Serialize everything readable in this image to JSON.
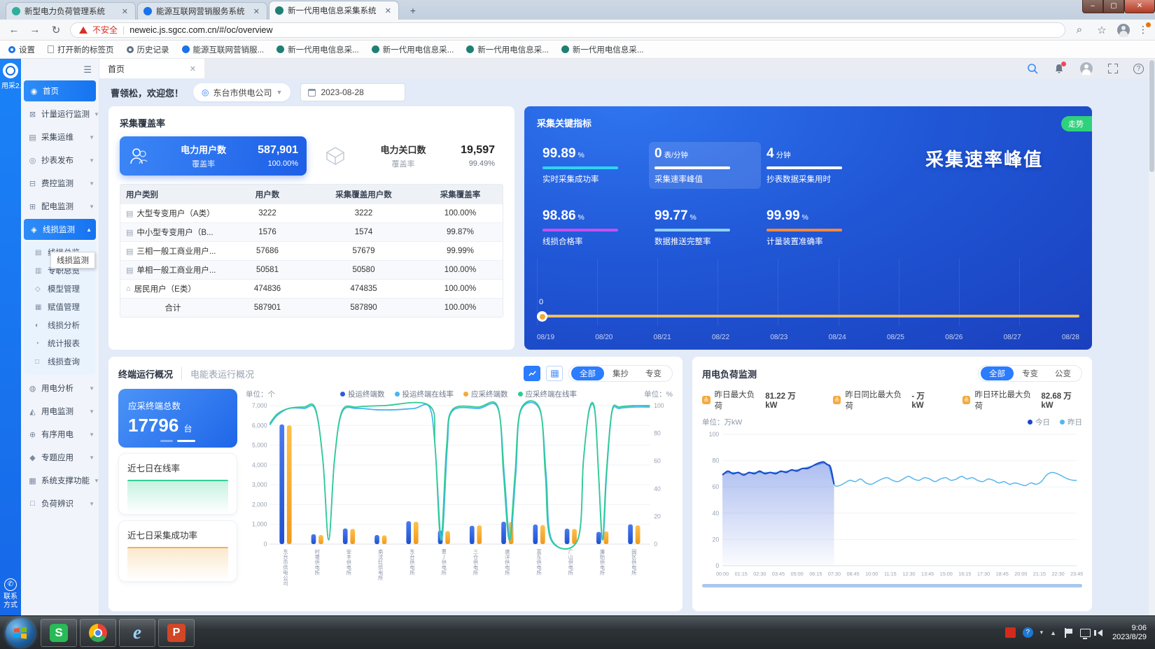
{
  "browser": {
    "tabs": [
      {
        "title": "新型电力负荷管理系统",
        "favicon_color": "#2fae9c"
      },
      {
        "title": "能源互联网营销服务系统",
        "favicon_color": "#1a73e8"
      },
      {
        "title": "新一代用电信息采集系统",
        "favicon_color": "#1f7f74"
      }
    ],
    "window_controls": {
      "minimize": "–",
      "maximize": "▢",
      "close": "✕"
    },
    "security_warning": "不安全",
    "url": "neweic.js.sgcc.com.cn/#/oc/overview",
    "bookmarks": [
      "设置",
      "打开新的标签页",
      "历史记录",
      "能源互联网营销服...",
      "新一代用电信息采...",
      "新一代用电信息采...",
      "新一代用电信息采...",
      "新一代用电信息采..."
    ]
  },
  "rail": {
    "logo_text": "用采2.0",
    "contact_line1": "联系",
    "contact_line2": "方式"
  },
  "sidebar": {
    "tooltip": "线损监测",
    "items": [
      {
        "label": "首页"
      },
      {
        "label": "计量运行监测"
      },
      {
        "label": "采集运维"
      },
      {
        "label": "抄表发布"
      },
      {
        "label": "费控监测"
      },
      {
        "label": "配电监测"
      },
      {
        "label": "线损监测"
      },
      {
        "label": "用电分析"
      },
      {
        "label": "用电监测"
      },
      {
        "label": "有序用电"
      },
      {
        "label": "专题应用"
      },
      {
        "label": "系统支撑功能"
      },
      {
        "label": "负荷辨识"
      }
    ],
    "submenu": [
      "线损总览",
      "专职总览",
      "模型管理",
      "赋值管理",
      "线损分析",
      "统计报表",
      "线损查询"
    ]
  },
  "header": {
    "page_tab": "首页",
    "greeting": "曹领松，欢迎您！",
    "company": "东台市供电公司",
    "date": "2023-08-28"
  },
  "coverage": {
    "title": "采集覆盖率",
    "cards": [
      {
        "title": "电力用户数",
        "sub_label": "覆盖率",
        "value": "587,901",
        "sub_value": "100.00%"
      },
      {
        "title": "电力关口数",
        "sub_label": "覆盖率",
        "value": "19,597",
        "sub_value": "99.49%"
      }
    ],
    "table": {
      "headers": [
        "用户类别",
        "用户数",
        "采集覆盖用户数",
        "采集覆盖率"
      ],
      "rows": [
        {
          "label": "大型专变用户（A类）",
          "users": "3222",
          "covered": "3222",
          "rate": "100.00%"
        },
        {
          "label": "中小型专变用户（B...",
          "users": "1576",
          "covered": "1574",
          "rate": "99.87%"
        },
        {
          "label": "三相一般工商业用户...",
          "users": "57686",
          "covered": "57679",
          "rate": "99.99%"
        },
        {
          "label": "单相一般工商业用户...",
          "users": "50581",
          "covered": "50580",
          "rate": "100.00%"
        },
        {
          "label": "居民用户（E类）",
          "users": "474836",
          "covered": "474835",
          "rate": "100.00%"
        },
        {
          "label": "合计",
          "users": "587901",
          "covered": "587890",
          "rate": "100.00%"
        }
      ]
    }
  },
  "kpi": {
    "title": "采集关键指标",
    "trend_button": "走势",
    "watermark": "采集速率峰值",
    "metrics": [
      {
        "value": "99.89",
        "unit": "%",
        "label": "实时采集成功率",
        "bar_color": "#2fd5f0",
        "bar_pct": 99.89
      },
      {
        "value": "0",
        "unit": "表/分钟",
        "label": "采集速率峰值",
        "bar_color": "#ffffff",
        "bar_pct": 100
      },
      {
        "value": "4",
        "unit": "分钟",
        "label": "抄表数据采集用时",
        "bar_color": "#ffffff",
        "bar_pct": 100
      },
      {
        "value": "98.86",
        "unit": "%",
        "label": "线损合格率",
        "bar_color": "#c94ef0",
        "bar_pct": 98.86
      },
      {
        "value": "99.77",
        "unit": "%",
        "label": "数据推送完整率",
        "bar_color": "#8fd0f8",
        "bar_pct": 99.77
      },
      {
        "value": "99.99",
        "unit": "%",
        "label": "计量装置准确率",
        "bar_color": "#f5893c",
        "bar_pct": 99.99
      }
    ],
    "timeline": {
      "marker_label": "0",
      "dates": [
        "08/19",
        "08/20",
        "08/21",
        "08/22",
        "08/23",
        "08/24",
        "08/25",
        "08/26",
        "08/27",
        "08/28"
      ]
    }
  },
  "terminal": {
    "tab_active": "终端运行概况",
    "tab_inactive": "电能表运行概况",
    "filters": [
      "全部",
      "集抄",
      "专变"
    ],
    "summary_card": {
      "title": "应采终端总数",
      "value": "17796",
      "unit": "台"
    },
    "spark_cards": [
      "近七日在线率",
      "近七日采集成功率"
    ],
    "unit_left": "单位：个",
    "unit_right": "单位：%",
    "legend": [
      {
        "label": "投运终端数",
        "color": "#2e5bda"
      },
      {
        "label": "投运终端在线率",
        "color": "#45b6f2"
      },
      {
        "label": "应采终端数",
        "color": "#f5a93c"
      },
      {
        "label": "应采终端在线率",
        "color": "#2fcb92"
      }
    ]
  },
  "load": {
    "title": "用电负荷监测",
    "filters": [
      "全部",
      "专变",
      "公变"
    ],
    "stats": [
      {
        "label": "昨日最大负荷",
        "value": "81.22 万kW"
      },
      {
        "label": "昨日同比最大负荷",
        "value": "- 万kW"
      },
      {
        "label": "昨日环比最大负荷",
        "value": "82.68 万kW"
      }
    ],
    "unit": "单位：万kW",
    "legend": [
      {
        "label": "今日",
        "color": "#1d46c8"
      },
      {
        "label": "昨日",
        "color": "#55b5ee"
      }
    ]
  },
  "taskbar": {
    "time": "9:06",
    "date": "2023/8/29"
  },
  "chart_data": [
    {
      "type": "bar",
      "title": "终端运行概况",
      "ylabel_left": "单位：个",
      "ylabel_right": "单位：%",
      "ylim_left": [
        0,
        7000
      ],
      "yticks_left": [
        "7,000",
        "6,000",
        "5,000",
        "4,000",
        "3,000",
        "2,000",
        "1,000",
        "0"
      ],
      "ylim_right": [
        0,
        100
      ],
      "yticks_right": [
        "100",
        "80",
        "60",
        "40",
        "20",
        "0"
      ],
      "categories": [
        "东台市供电公司",
        "时堰供电所",
        "安丰供电所",
        "南沈灶供电所",
        "东台供电所",
        "曹丿供电所",
        "三仓供电所",
        "唐洋供电所",
        "富东供电所",
        "广山供电所",
        "廉贻供电所",
        "园区供电所"
      ],
      "series": [
        {
          "name": "投运终端数",
          "type": "bar",
          "color": "#2e5bda",
          "values": [
            6050,
            500,
            790,
            460,
            1160,
            680,
            930,
            1130,
            990,
            780,
            620,
            1000
          ]
        },
        {
          "name": "应采终端数",
          "type": "bar",
          "color": "#f5a93c",
          "values": [
            6000,
            460,
            770,
            440,
            1130,
            660,
            950,
            1120,
            960,
            770,
            640,
            950
          ]
        },
        {
          "name": "投运终端在线率",
          "type": "line",
          "color": "#45b6f2",
          "points": [
            [
              0,
              86
            ],
            [
              0.02,
              93
            ],
            [
              0.05,
              98
            ],
            [
              0.09,
              98
            ],
            [
              0.12,
              97
            ],
            [
              0.14,
              60
            ],
            [
              0.155,
              3
            ],
            [
              0.17,
              60
            ],
            [
              0.19,
              95
            ],
            [
              0.23,
              98
            ],
            [
              0.28,
              97
            ],
            [
              0.33,
              97
            ],
            [
              0.38,
              98
            ],
            [
              0.42,
              99
            ],
            [
              0.435,
              70
            ],
            [
              0.452,
              3
            ],
            [
              0.467,
              70
            ],
            [
              0.48,
              96
            ],
            [
              0.55,
              98
            ],
            [
              0.6,
              98
            ],
            [
              0.617,
              50
            ],
            [
              0.632,
              3
            ],
            [
              0.647,
              50
            ],
            [
              0.66,
              96
            ],
            [
              0.71,
              97
            ],
            [
              0.727,
              50
            ],
            [
              0.742,
              3
            ],
            [
              0.81,
              3
            ],
            [
              0.825,
              60
            ],
            [
              0.84,
              96
            ],
            [
              0.855,
              96
            ],
            [
              0.865,
              50
            ],
            [
              0.876,
              3
            ],
            [
              0.886,
              50
            ],
            [
              0.9,
              95
            ],
            [
              0.92,
              98
            ],
            [
              0.96,
              99
            ],
            [
              1,
              99
            ]
          ]
        },
        {
          "name": "应采终端在线率",
          "type": "line",
          "color": "#2fcb92",
          "points": [
            [
              0,
              87
            ],
            [
              0.02,
              94
            ],
            [
              0.05,
              98
            ],
            [
              0.09,
              99
            ],
            [
              0.12,
              98
            ],
            [
              0.14,
              60
            ],
            [
              0.155,
              3
            ],
            [
              0.17,
              60
            ],
            [
              0.19,
              96
            ],
            [
              0.23,
              99
            ],
            [
              0.3,
              100
            ],
            [
              0.42,
              100
            ],
            [
              0.435,
              70
            ],
            [
              0.45,
              3
            ],
            [
              0.465,
              70
            ],
            [
              0.48,
              97
            ],
            [
              0.55,
              99
            ],
            [
              0.6,
              99
            ],
            [
              0.615,
              50
            ],
            [
              0.63,
              3
            ],
            [
              0.645,
              50
            ],
            [
              0.66,
              97
            ],
            [
              0.71,
              98
            ],
            [
              0.725,
              50
            ],
            [
              0.74,
              3
            ],
            [
              0.81,
              3
            ],
            [
              0.825,
              60
            ],
            [
              0.84,
              97
            ],
            [
              0.855,
              97
            ],
            [
              0.865,
              50
            ],
            [
              0.875,
              3
            ],
            [
              0.885,
              50
            ],
            [
              0.9,
              96
            ],
            [
              0.92,
              99
            ],
            [
              0.96,
              100
            ],
            [
              1,
              100
            ]
          ]
        }
      ]
    },
    {
      "type": "line",
      "title": "用电负荷监测",
      "ylabel": "单位：万kW",
      "ylim": [
        0,
        100
      ],
      "yticks": [
        "100",
        "80",
        "60",
        "40",
        "20",
        "0"
      ],
      "x_ticks": [
        "00:00",
        "01:15",
        "02:30",
        "03:45",
        "05:00",
        "06:15",
        "07:30",
        "08:45",
        "10:00",
        "11:15",
        "12:30",
        "13:45",
        "15:00",
        "16:15",
        "17:30",
        "18:45",
        "20:00",
        "21:15",
        "22:30",
        "23:45"
      ],
      "series": [
        {
          "name": "昨日",
          "color": "#55b5ee",
          "area": false,
          "points": [
            [
              0,
              70
            ],
            [
              0.03,
              71
            ],
            [
              0.06,
              70
            ],
            [
              0.09,
              71
            ],
            [
              0.12,
              71
            ],
            [
              0.15,
              71
            ],
            [
              0.18,
              72
            ],
            [
              0.21,
              73
            ],
            [
              0.24,
              75
            ],
            [
              0.27,
              77
            ],
            [
              0.285,
              78
            ],
            [
              0.3,
              76
            ],
            [
              0.315,
              62
            ],
            [
              0.33,
              61
            ],
            [
              0.345,
              63
            ],
            [
              0.36,
              65
            ],
            [
              0.375,
              64
            ],
            [
              0.39,
              66
            ],
            [
              0.405,
              63
            ],
            [
              0.42,
              62
            ],
            [
              0.435,
              64
            ],
            [
              0.45,
              66
            ],
            [
              0.465,
              67
            ],
            [
              0.48,
              65
            ],
            [
              0.495,
              64
            ],
            [
              0.51,
              66
            ],
            [
              0.525,
              68
            ],
            [
              0.54,
              66
            ],
            [
              0.555,
              65
            ],
            [
              0.57,
              67
            ],
            [
              0.585,
              66
            ],
            [
              0.6,
              64
            ],
            [
              0.615,
              66
            ],
            [
              0.63,
              67
            ],
            [
              0.645,
              65
            ],
            [
              0.66,
              66
            ],
            [
              0.675,
              68
            ],
            [
              0.69,
              66
            ],
            [
              0.705,
              67
            ],
            [
              0.72,
              65
            ],
            [
              0.735,
              64
            ],
            [
              0.75,
              66
            ],
            [
              0.765,
              65
            ],
            [
              0.78,
              63
            ],
            [
              0.795,
              64
            ],
            [
              0.81,
              62
            ],
            [
              0.825,
              63
            ],
            [
              0.84,
              62
            ],
            [
              0.855,
              61
            ],
            [
              0.87,
              63
            ],
            [
              0.885,
              62
            ],
            [
              0.9,
              64
            ],
            [
              0.915,
              69
            ],
            [
              0.93,
              71
            ],
            [
              0.945,
              70
            ],
            [
              0.96,
              68
            ],
            [
              0.975,
              66
            ],
            [
              0.99,
              65
            ],
            [
              1,
              65
            ]
          ]
        },
        {
          "name": "今日",
          "color": "#1d46c8",
          "area": true,
          "points": [
            [
              0,
              69
            ],
            [
              0.015,
              72
            ],
            [
              0.03,
              70
            ],
            [
              0.045,
              71
            ],
            [
              0.06,
              69
            ],
            [
              0.075,
              71
            ],
            [
              0.09,
              70
            ],
            [
              0.105,
              72
            ],
            [
              0.12,
              70
            ],
            [
              0.135,
              71
            ],
            [
              0.15,
              70
            ],
            [
              0.165,
              72
            ],
            [
              0.18,
              71
            ],
            [
              0.195,
              73
            ],
            [
              0.21,
              72
            ],
            [
              0.225,
              74
            ],
            [
              0.24,
              74
            ],
            [
              0.255,
              76
            ],
            [
              0.27,
              78
            ],
            [
              0.285,
              79
            ],
            [
              0.295,
              77
            ],
            [
              0.305,
              75
            ],
            [
              0.315,
              62
            ]
          ]
        }
      ]
    }
  ]
}
